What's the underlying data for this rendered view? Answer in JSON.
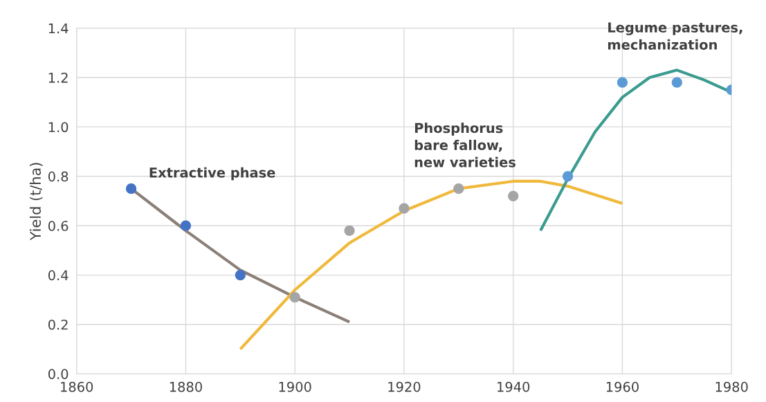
{
  "chart_data": {
    "type": "line",
    "ylabel": "Yield (t/ha)",
    "xlim": [
      1860,
      1980
    ],
    "xticks": [
      1860,
      1880,
      1900,
      1920,
      1940,
      1960,
      1980
    ],
    "ylim": [
      0,
      1.4
    ],
    "yticks": [
      {
        "value": 0,
        "label": "0.0"
      },
      {
        "value": 0.2,
        "label": "0.2"
      },
      {
        "value": 0.4,
        "label": "0.4"
      },
      {
        "value": 0.6,
        "label": "0.6"
      },
      {
        "value": 0.8,
        "label": "0.8"
      },
      {
        "value": 1.0,
        "label": "1.0"
      },
      {
        "value": 1.2,
        "label": "1.2"
      },
      {
        "value": 1.4,
        "label": "1.4"
      }
    ],
    "grid": true,
    "legend": false,
    "series": [
      {
        "marker": "none",
        "color": "#8c7f78",
        "x": [
          1870,
          1880,
          1890,
          1900,
          1910
        ],
        "values": [
          0.75,
          0.58,
          0.42,
          0.31,
          0.21
        ]
      },
      {
        "marker": "none",
        "color": "#f0b93b",
        "x": [
          1890,
          1900,
          1910,
          1920,
          1930,
          1940,
          1945,
          1950,
          1960
        ],
        "values": [
          0.1,
          0.34,
          0.53,
          0.66,
          0.75,
          0.78,
          0.78,
          0.76,
          0.69
        ]
      },
      {
        "marker": "none",
        "color": "#3a9b8f",
        "x": [
          1945,
          1950,
          1955,
          1960,
          1965,
          1970,
          1975,
          1980
        ],
        "values": [
          0.58,
          0.79,
          0.98,
          1.12,
          1.2,
          1.23,
          1.19,
          1.14
        ]
      },
      {
        "type": "scatter",
        "marker": "circle",
        "color": "#4472c4",
        "x": [
          1870,
          1880,
          1890
        ],
        "values": [
          0.75,
          0.6,
          0.4
        ]
      },
      {
        "type": "scatter",
        "marker": "circle",
        "color": "#a5a5a5",
        "x": [
          1900,
          1910,
          1920,
          1930,
          1940
        ],
        "values": [
          0.31,
          0.58,
          0.67,
          0.75,
          0.72
        ]
      },
      {
        "type": "scatter",
        "marker": "circle",
        "color": "#5b9bd5",
        "x": [
          1950,
          1960,
          1970,
          1980
        ],
        "values": [
          0.8,
          1.18,
          1.18,
          1.15
        ]
      }
    ],
    "annotations": [
      "Extractive phase",
      "Phosphorus\nbare fallow,\nnew varieties",
      "Legume pastures,\nmechanization"
    ]
  }
}
